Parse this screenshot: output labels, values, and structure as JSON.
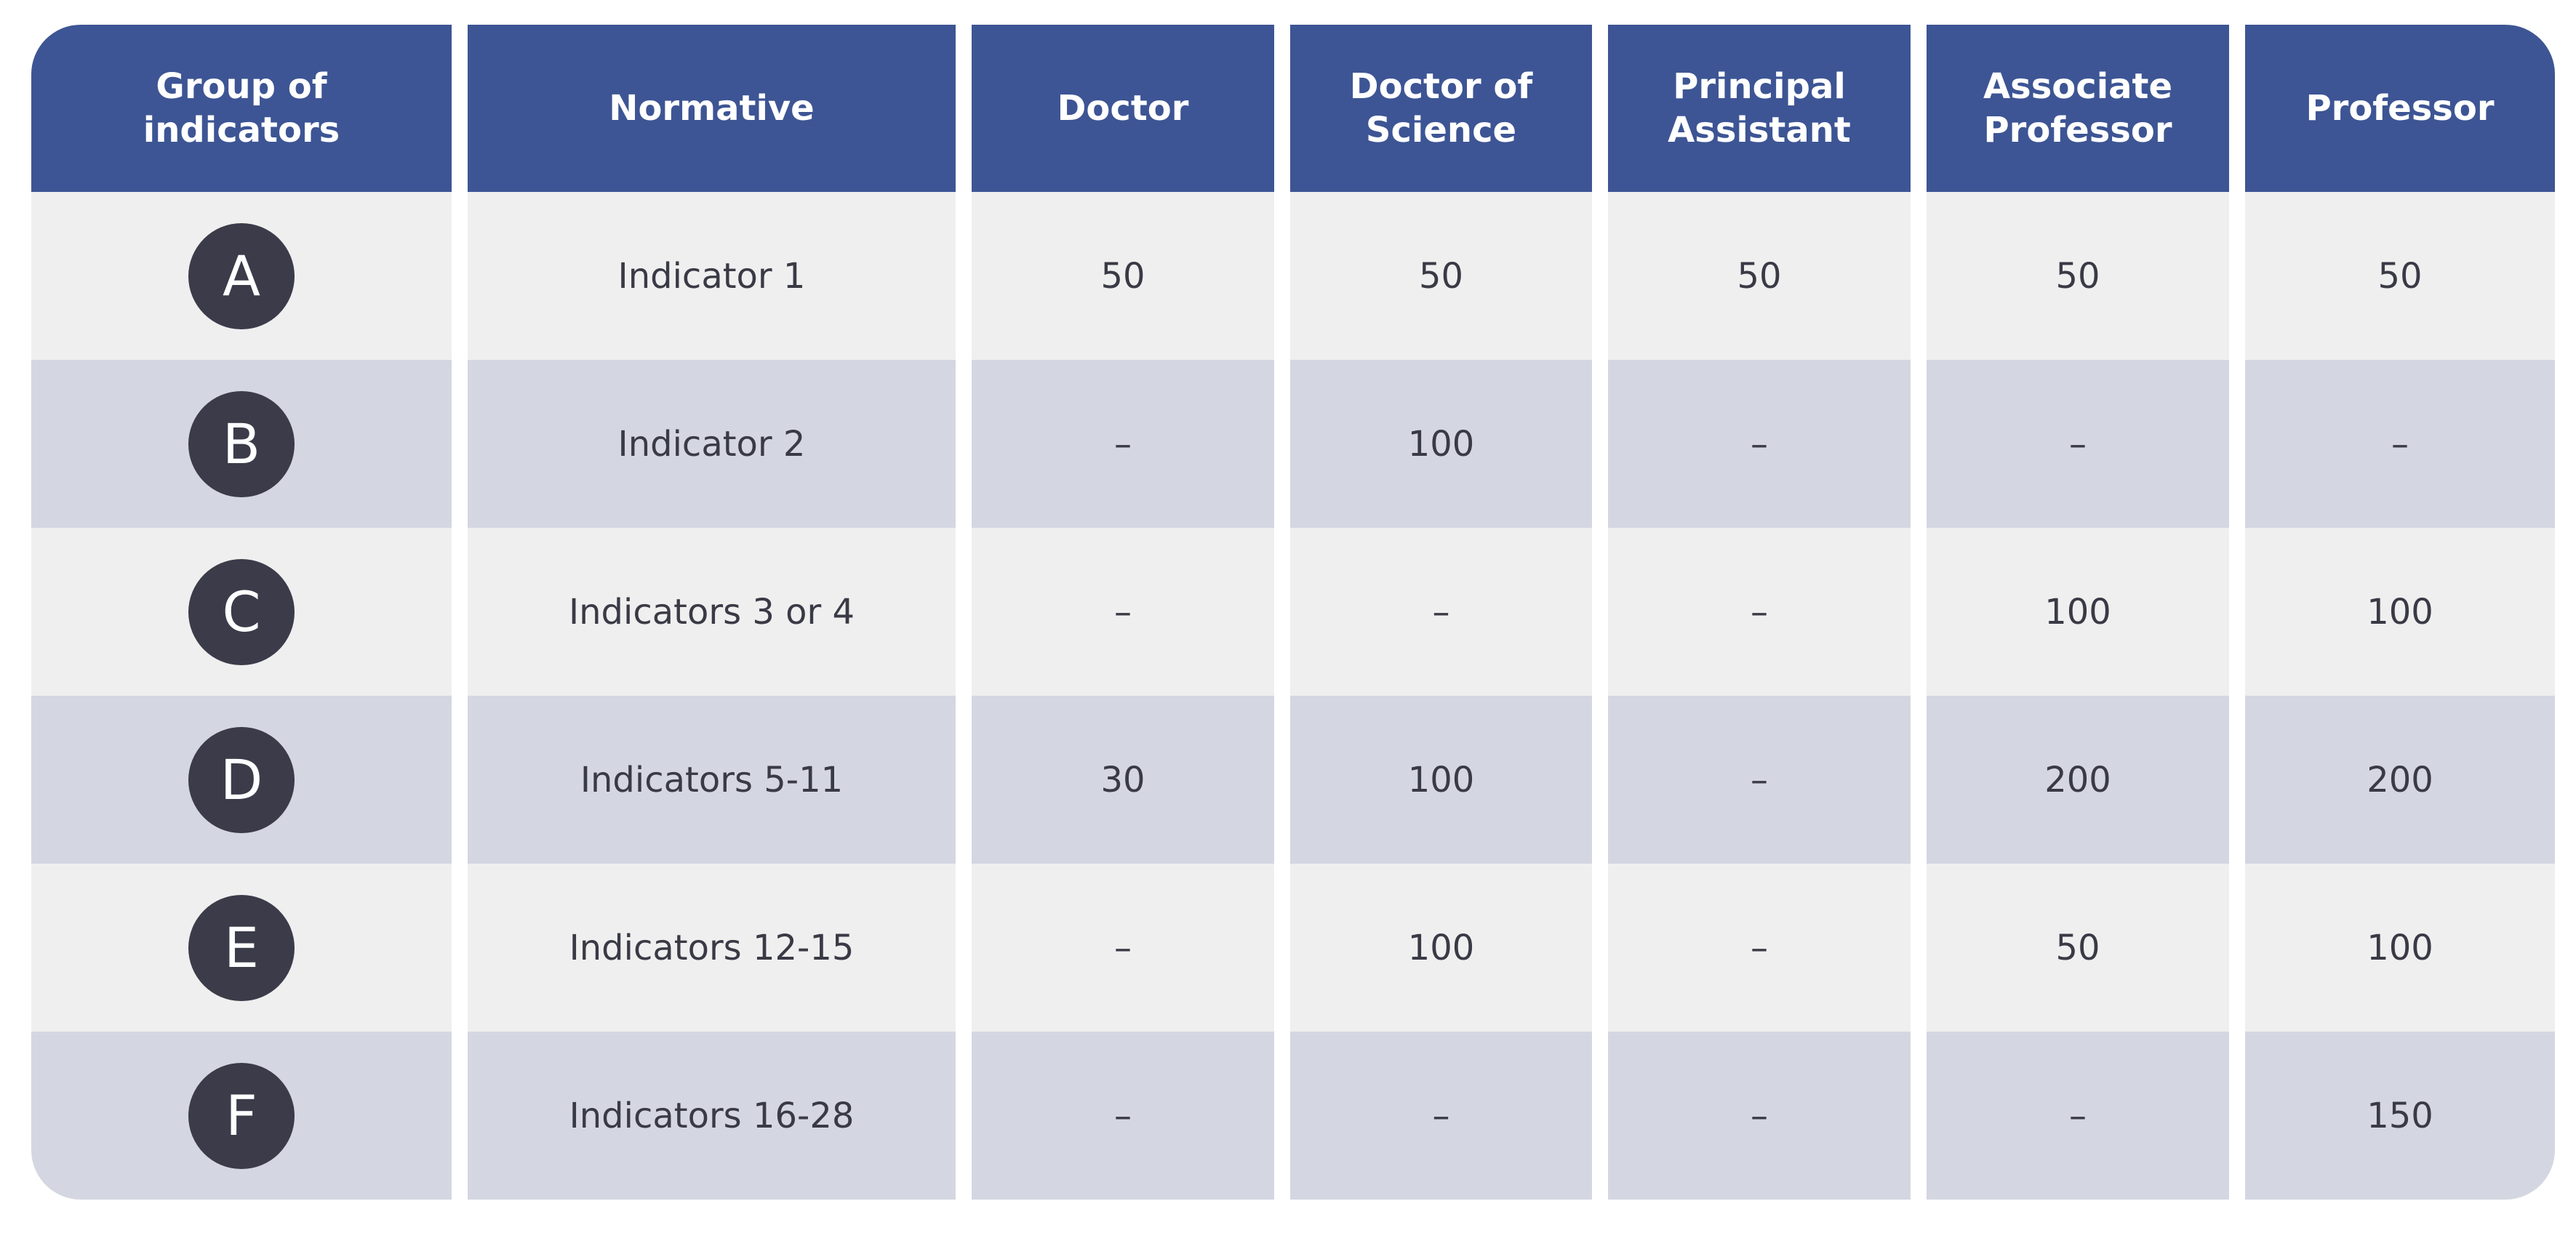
{
  "table": {
    "header": [
      "Group of indicators",
      "Normative",
      "Doctor",
      "Doctor of Science",
      "Principal Assistant",
      "Associate Professor",
      "Professor"
    ],
    "rows": [
      [
        "A",
        "Indicator 1",
        50,
        50,
        50,
        50,
        50
      ],
      [
        "B",
        "Indicator 2",
        "–",
        100,
        "–",
        "–",
        "–"
      ],
      [
        "C",
        "Indicators 3 or 4",
        "–",
        "–",
        "–",
        100,
        100
      ],
      [
        "D",
        "Indicators 5-11",
        30,
        100,
        "–",
        200,
        200
      ],
      [
        "E",
        "Indicators 12-15",
        "–",
        100,
        "–",
        50,
        100
      ],
      [
        "F",
        "Indicators 16-28",
        "–",
        "–",
        "–",
        "–",
        150
      ]
    ]
  }
}
